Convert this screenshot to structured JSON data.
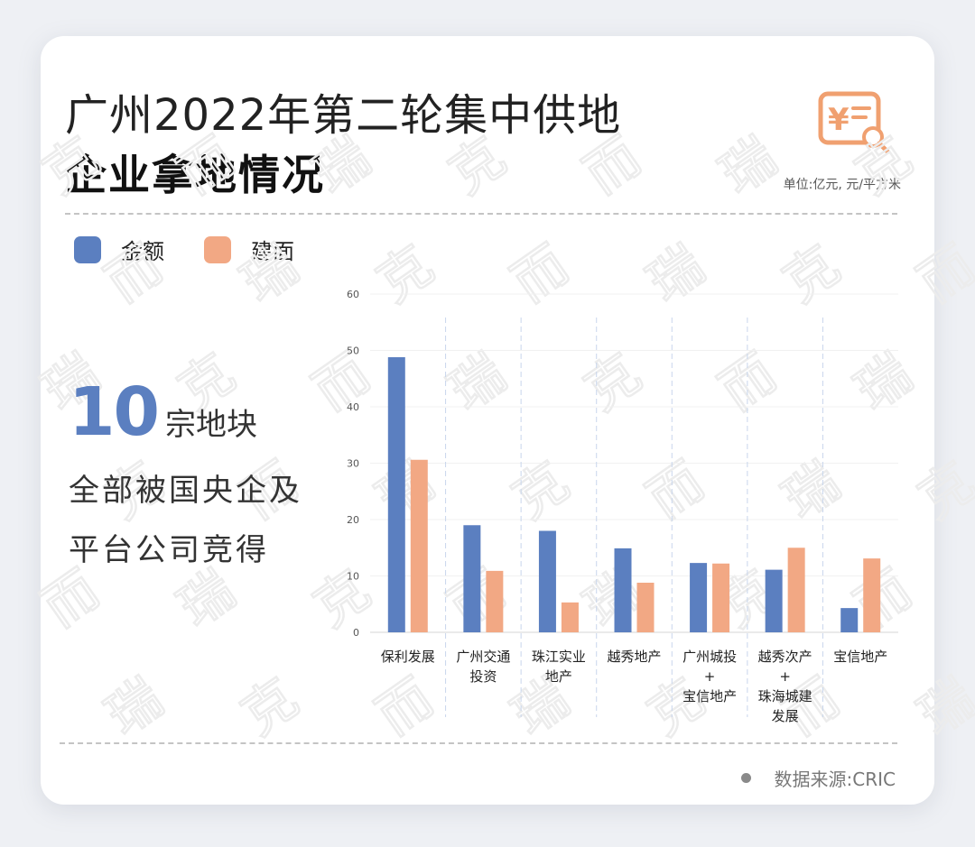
{
  "header": {
    "title_line1": "广州2022年第二轮集中供地",
    "title_line2": "企业拿地情况",
    "unit": "单位:亿元, 元/平方米"
  },
  "highlight": {
    "number": "10",
    "unit": "宗地块",
    "line2": "全部被国央企及",
    "line3": "平台公司竞得"
  },
  "source": "数据来源:CRIC",
  "watermark_text": "克而瑞",
  "colors": {
    "amount": "#5b7fc0",
    "area": "#f2a884",
    "accent_icon": "#f0a070"
  },
  "chart_data": {
    "type": "bar",
    "categories": [
      [
        "保利发展"
      ],
      [
        "广州交通",
        "投资"
      ],
      [
        "珠江实业",
        "地产"
      ],
      [
        "越秀地产"
      ],
      [
        "广州城投",
        "+",
        "宝信地产"
      ],
      [
        "越秀次产",
        "+",
        "珠海城建",
        "发展"
      ],
      [
        "宝信地产"
      ]
    ],
    "series": [
      {
        "name": "金额",
        "values": [
          48.8,
          19.0,
          18.0,
          14.9,
          12.3,
          11.1,
          4.3
        ]
      },
      {
        "name": "建面",
        "values": [
          30.6,
          10.9,
          5.3,
          8.8,
          12.2,
          15.0,
          13.1
        ]
      }
    ],
    "ylim": [
      0,
      60
    ],
    "yticks": [
      0,
      10,
      20,
      30,
      40,
      50,
      60
    ],
    "grid": true,
    "legend_position": "top-left"
  }
}
